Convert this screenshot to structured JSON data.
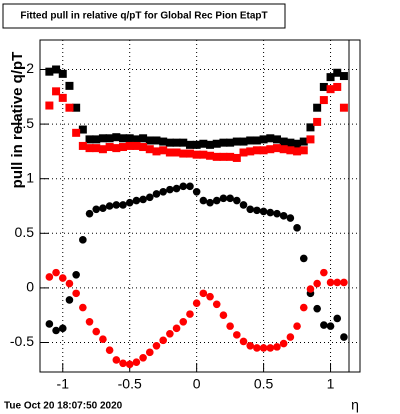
{
  "chart_data": {
    "type": "scatter",
    "title": "Fitted pull in relative q/pT for Global Rec Pion EtapT",
    "y_label": "pull in relative q/pT",
    "x_label": "η",
    "footer": "Tue Oct 20 18:07:50 2020",
    "x": [
      -1.1,
      -1.05,
      -1.0,
      -0.95,
      -0.9,
      -0.85,
      -0.8,
      -0.75,
      -0.7,
      -0.65,
      -0.6,
      -0.55,
      -0.5,
      -0.45,
      -0.4,
      -0.35,
      -0.3,
      -0.25,
      -0.2,
      -0.15,
      -0.1,
      -0.05,
      0,
      0.05,
      0.1,
      0.15,
      0.2,
      0.25,
      0.3,
      0.35,
      0.4,
      0.45,
      0.5,
      0.55,
      0.6,
      0.65,
      0.7,
      0.75,
      0.8,
      0.85,
      0.9,
      0.95,
      1.0,
      1.05,
      1.1
    ],
    "series": [
      {
        "color": "#000000",
        "marker": "square",
        "values": [
          1.98,
          2.0,
          1.96,
          1.85,
          1.65,
          1.45,
          1.36,
          1.36,
          1.37,
          1.37,
          1.38,
          1.37,
          1.37,
          1.36,
          1.37,
          1.35,
          1.35,
          1.34,
          1.33,
          1.33,
          1.33,
          1.31,
          1.31,
          1.32,
          1.31,
          1.32,
          1.33,
          1.33,
          1.34,
          1.34,
          1.35,
          1.35,
          1.36,
          1.37,
          1.36,
          1.34,
          1.33,
          1.32,
          1.34,
          1.47,
          1.65,
          1.84,
          1.93,
          1.97,
          1.94
        ]
      },
      {
        "color": "#ff0000",
        "marker": "square",
        "values": [
          1.67,
          1.8,
          1.74,
          1.65,
          1.42,
          1.3,
          1.28,
          1.28,
          1.27,
          1.29,
          1.28,
          1.29,
          1.3,
          1.3,
          1.29,
          1.27,
          1.25,
          1.26,
          1.24,
          1.24,
          1.23,
          1.23,
          1.22,
          1.22,
          1.21,
          1.2,
          1.2,
          1.2,
          1.19,
          1.24,
          1.25,
          1.26,
          1.26,
          1.27,
          1.28,
          1.27,
          1.26,
          1.25,
          1.26,
          1.36,
          1.52,
          1.72,
          1.82,
          1.84,
          1.65
        ]
      },
      {
        "color": "#000000",
        "marker": "circle",
        "values": [
          -0.33,
          -0.39,
          -0.37,
          -0.11,
          0.12,
          0.44,
          0.68,
          0.72,
          0.73,
          0.75,
          0.76,
          0.76,
          0.78,
          0.8,
          0.81,
          0.83,
          0.86,
          0.88,
          0.9,
          0.91,
          0.93,
          0.93,
          0.88,
          0.8,
          0.78,
          0.8,
          0.82,
          0.82,
          0.8,
          0.76,
          0.72,
          0.71,
          0.7,
          0.69,
          0.68,
          0.66,
          0.64,
          0.55,
          0.27,
          -0.05,
          -0.19,
          -0.34,
          -0.35,
          -0.28,
          -0.45
        ]
      },
      {
        "color": "#ff0000",
        "marker": "circle",
        "values": [
          0.1,
          0.14,
          0.09,
          0.04,
          -0.05,
          -0.18,
          -0.31,
          -0.4,
          -0.47,
          -0.57,
          -0.66,
          -0.69,
          -0.7,
          -0.68,
          -0.64,
          -0.59,
          -0.53,
          -0.48,
          -0.42,
          -0.37,
          -0.31,
          -0.24,
          -0.14,
          -0.05,
          -0.08,
          -0.15,
          -0.25,
          -0.35,
          -0.43,
          -0.49,
          -0.53,
          -0.55,
          -0.55,
          -0.55,
          -0.54,
          -0.51,
          -0.45,
          -0.35,
          -0.18,
          -0.01,
          0.04,
          0.14,
          0.05,
          0.05,
          0.05
        ]
      }
    ],
    "xlim": [
      -1.17,
      1.22
    ],
    "ylim": [
      -0.77,
      2.27
    ],
    "xticks": [
      -1,
      -0.5,
      0,
      0.5,
      1
    ],
    "yticks": [
      -0.5,
      0,
      0.5,
      1,
      1.5,
      2
    ],
    "grid": true
  }
}
